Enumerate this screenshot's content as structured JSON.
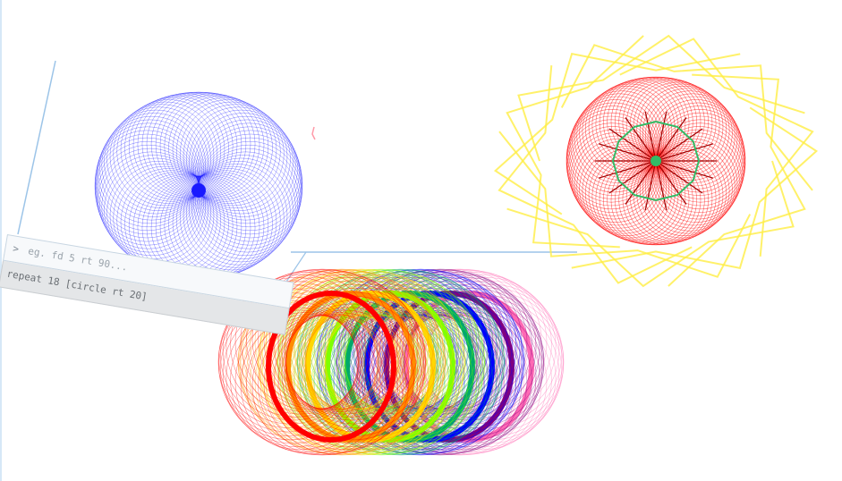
{
  "console": {
    "prompt_symbol": ">",
    "input_placeholder": "eg. fd 5 rt 90...",
    "history_command": "repeat 18 [circle rt 20]"
  },
  "drawings": [
    {
      "name": "blue-spirograph",
      "color": "#1a1aff"
    },
    {
      "name": "red-yellow-green-spirograph",
      "colors": [
        "#ff0000",
        "#ffee44",
        "#33bb66"
      ]
    },
    {
      "name": "rainbow-circles-spirograph",
      "colors": [
        "#ff0000",
        "#ff8c00",
        "#ffd700",
        "#7fff00",
        "#00a86b",
        "#0000ff",
        "#800080",
        "#ff69b4"
      ]
    }
  ]
}
